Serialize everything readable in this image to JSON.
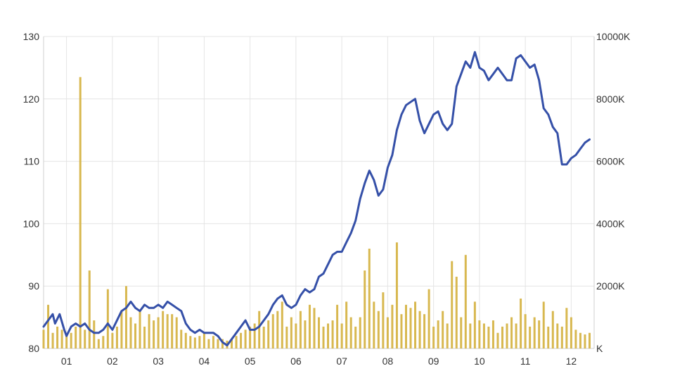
{
  "chart_data": {
    "type": "line",
    "title": "",
    "xlabel": "",
    "ylabel": "",
    "x_ticks": [
      "01",
      "02",
      "03",
      "04",
      "05",
      "06",
      "07",
      "08",
      "09",
      "10",
      "11",
      "12"
    ],
    "y_left": {
      "ticks": [
        "80",
        "90",
        "100",
        "110",
        "120",
        "130"
      ],
      "range": [
        80,
        130
      ]
    },
    "y_right": {
      "ticks": [
        "K",
        "2000K",
        "4000K",
        "6000K",
        "8000K",
        "10000K"
      ],
      "range": [
        0,
        10000
      ]
    },
    "x_range": [
      0.5,
      12.5
    ],
    "grid": true,
    "colors": {
      "price": "#3550a8",
      "volume": "#d8b850",
      "grid": "#e4e4e4"
    },
    "series": [
      {
        "axis": "left",
        "type": "line",
        "x": [
          0.5,
          0.6,
          0.7,
          0.75,
          0.85,
          0.95,
          1.0,
          1.1,
          1.2,
          1.3,
          1.4,
          1.5,
          1.6,
          1.7,
          1.8,
          1.9,
          2.0,
          2.1,
          2.2,
          2.3,
          2.4,
          2.5,
          2.6,
          2.7,
          2.8,
          2.9,
          3.0,
          3.1,
          3.2,
          3.3,
          3.4,
          3.5,
          3.6,
          3.7,
          3.8,
          3.9,
          4.0,
          4.1,
          4.2,
          4.3,
          4.4,
          4.5,
          4.6,
          4.7,
          4.8,
          4.9,
          5.0,
          5.1,
          5.2,
          5.3,
          5.4,
          5.5,
          5.6,
          5.7,
          5.8,
          5.9,
          6.0,
          6.1,
          6.2,
          6.3,
          6.4,
          6.5,
          6.6,
          6.7,
          6.8,
          6.9,
          7.0,
          7.1,
          7.2,
          7.3,
          7.4,
          7.5,
          7.6,
          7.7,
          7.8,
          7.9,
          8.0,
          8.1,
          8.2,
          8.3,
          8.4,
          8.5,
          8.6,
          8.7,
          8.8,
          8.9,
          9.0,
          9.1,
          9.2,
          9.3,
          9.4,
          9.5,
          9.6,
          9.7,
          9.8,
          9.9,
          10.0,
          10.1,
          10.2,
          10.3,
          10.4,
          10.5,
          10.6,
          10.7,
          10.8,
          10.9,
          11.0,
          11.1,
          11.2,
          11.3,
          11.4,
          11.5,
          11.6,
          11.7,
          11.8,
          11.9,
          12.0,
          12.1,
          12.2,
          12.3,
          12.4
        ],
        "values": [
          83.5,
          84.5,
          85.5,
          84,
          85.5,
          83,
          82,
          83.5,
          84,
          83.5,
          84,
          83,
          82.5,
          82.5,
          83,
          84,
          83,
          84.5,
          86,
          86.5,
          87.5,
          86.5,
          86,
          87,
          86.5,
          86.5,
          87,
          86.5,
          87.5,
          87,
          86.5,
          86,
          84,
          83,
          82.5,
          83,
          82.5,
          82.5,
          82.5,
          82,
          81,
          80.5,
          81.5,
          82.5,
          83.5,
          84.5,
          83,
          83,
          83.5,
          84.5,
          85.5,
          87,
          88,
          88.5,
          87,
          86.5,
          87,
          88.5,
          89.5,
          89,
          89.5,
          91.5,
          92,
          93.5,
          95,
          95.5,
          95.5,
          97,
          98.5,
          100.5,
          104,
          106.5,
          108.5,
          107,
          104.5,
          105.5,
          109,
          111,
          115,
          117.5,
          119,
          119.5,
          120,
          116.5,
          114.5,
          116,
          117.5,
          118,
          116,
          115,
          116,
          122,
          124,
          126,
          125,
          127.5,
          125,
          124.5,
          123,
          124,
          125,
          124,
          123,
          123,
          126.5,
          127,
          126,
          125,
          125.5,
          123,
          118.5,
          117.5,
          115.5,
          114.5,
          109.5,
          109.5,
          110.5,
          111,
          112,
          113,
          113.5
        ]
      },
      {
        "axis": "right",
        "type": "bar",
        "x": [
          0.5,
          0.6,
          0.7,
          0.8,
          0.9,
          1.0,
          1.1,
          1.2,
          1.3,
          1.4,
          1.5,
          1.6,
          1.7,
          1.8,
          1.9,
          2.0,
          2.1,
          2.2,
          2.3,
          2.4,
          2.5,
          2.6,
          2.7,
          2.8,
          2.9,
          3.0,
          3.1,
          3.2,
          3.3,
          3.4,
          3.5,
          3.6,
          3.7,
          3.8,
          3.9,
          4.0,
          4.1,
          4.2,
          4.3,
          4.4,
          4.5,
          4.6,
          4.7,
          4.8,
          4.9,
          5.0,
          5.1,
          5.2,
          5.3,
          5.4,
          5.5,
          5.6,
          5.7,
          5.8,
          5.9,
          6.0,
          6.1,
          6.2,
          6.3,
          6.4,
          6.5,
          6.6,
          6.7,
          6.8,
          6.9,
          7.0,
          7.1,
          7.2,
          7.3,
          7.4,
          7.5,
          7.6,
          7.7,
          7.8,
          7.9,
          8.0,
          8.1,
          8.2,
          8.3,
          8.4,
          8.5,
          8.6,
          8.7,
          8.8,
          8.9,
          9.0,
          9.1,
          9.2,
          9.3,
          9.4,
          9.5,
          9.6,
          9.7,
          9.8,
          9.9,
          10.0,
          10.1,
          10.2,
          10.3,
          10.4,
          10.5,
          10.6,
          10.7,
          10.8,
          10.9,
          11.0,
          11.1,
          11.2,
          11.3,
          11.4,
          11.5,
          11.6,
          11.7,
          11.8,
          11.9,
          12.0,
          12.1,
          12.2,
          12.3,
          12.4
        ],
        "values": [
          600,
          1400,
          500,
          700,
          600,
          400,
          500,
          700,
          8700,
          600,
          2500,
          900,
          300,
          400,
          1900,
          500,
          700,
          1200,
          2000,
          1000,
          800,
          1200,
          700,
          1100,
          900,
          1000,
          1200,
          1100,
          1100,
          1000,
          600,
          500,
          400,
          350,
          400,
          500,
          300,
          400,
          300,
          300,
          250,
          300,
          400,
          500,
          600,
          700,
          800,
          1200,
          700,
          900,
          1100,
          1200,
          1500,
          700,
          1000,
          800,
          1200,
          900,
          1400,
          1300,
          1000,
          700,
          800,
          900,
          1400,
          800,
          1500,
          1000,
          700,
          1000,
          2500,
          3200,
          1500,
          1200,
          1800,
          1000,
          1400,
          3400,
          1100,
          1400,
          1300,
          1500,
          1200,
          1100,
          1900,
          700,
          900,
          1200,
          800,
          2800,
          2300,
          1000,
          3000,
          800,
          1500,
          900,
          800,
          700,
          900,
          500,
          700,
          800,
          1000,
          800,
          1600,
          1100,
          700,
          1000,
          900,
          1500,
          700,
          1200,
          800,
          700,
          1300,
          1000,
          600,
          500,
          450,
          500
        ]
      }
    ]
  }
}
